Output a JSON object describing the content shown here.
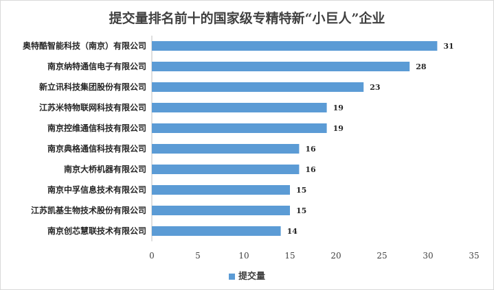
{
  "chart_data": {
    "type": "bar",
    "orientation": "horizontal",
    "title": "提交量排名前十的国家级专精特新“小巨人”企业",
    "categories": [
      "奥特酷智能科技（南京）有限公司",
      "南京纳特通信电子有限公司",
      "新立讯科技集团股份有限公司",
      "江苏米特物联网科技有限公司",
      "南京控维通信科技有限公司",
      "南京典格通信科技有限公司",
      "南京大桥机器有限公司",
      "南京中孚信息技术有限公司",
      "江苏凯基生物技术股份有限公司",
      "南京创芯慧联技术有限公司"
    ],
    "series": [
      {
        "name": "提交量",
        "values": [
          31,
          28,
          23,
          19,
          19,
          16,
          16,
          15,
          15,
          14
        ]
      }
    ],
    "xlim": [
      0,
      35
    ],
    "xticks": [
      "0",
      "5",
      "10",
      "15",
      "20",
      "25",
      "30",
      "35"
    ],
    "grid": false,
    "legend_position": "bottom",
    "colors": {
      "bar": "#5b9bd5",
      "axis": "#bfbfbf"
    }
  }
}
